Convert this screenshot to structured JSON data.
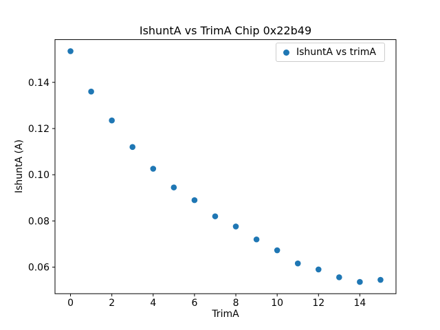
{
  "figure": {
    "background": "#ffffff"
  },
  "chart_data": {
    "type": "scatter",
    "title": "IshuntA vs TrimA Chip 0x22b49",
    "xlabel": "TrimA",
    "ylabel": "IshuntA (A)",
    "legend": [
      "IshuntA vs trimA"
    ],
    "legend_position": "upper right",
    "marker_color": "#1f77b4",
    "grid": false,
    "x": [
      0,
      1,
      2,
      3,
      4,
      5,
      6,
      7,
      8,
      9,
      10,
      11,
      12,
      13,
      14,
      15
    ],
    "y": [
      0.1535,
      0.136,
      0.1235,
      0.112,
      0.1026,
      0.0945,
      0.089,
      0.082,
      0.0776,
      0.072,
      0.0673,
      0.0616,
      0.059,
      0.0556,
      0.0536,
      0.0545
    ],
    "xlim": [
      -0.75,
      15.75
    ],
    "ylim": [
      0.0485,
      0.1585
    ],
    "x_ticks": [
      0,
      2,
      4,
      6,
      8,
      10,
      12,
      14
    ],
    "x_tick_labels": [
      "0",
      "2",
      "4",
      "6",
      "8",
      "10",
      "12",
      "14"
    ],
    "y_ticks": [
      0.06,
      0.08,
      0.1,
      0.12,
      0.14
    ],
    "y_tick_labels": [
      "0.06",
      "0.08",
      "0.10",
      "0.12",
      "0.14"
    ]
  }
}
